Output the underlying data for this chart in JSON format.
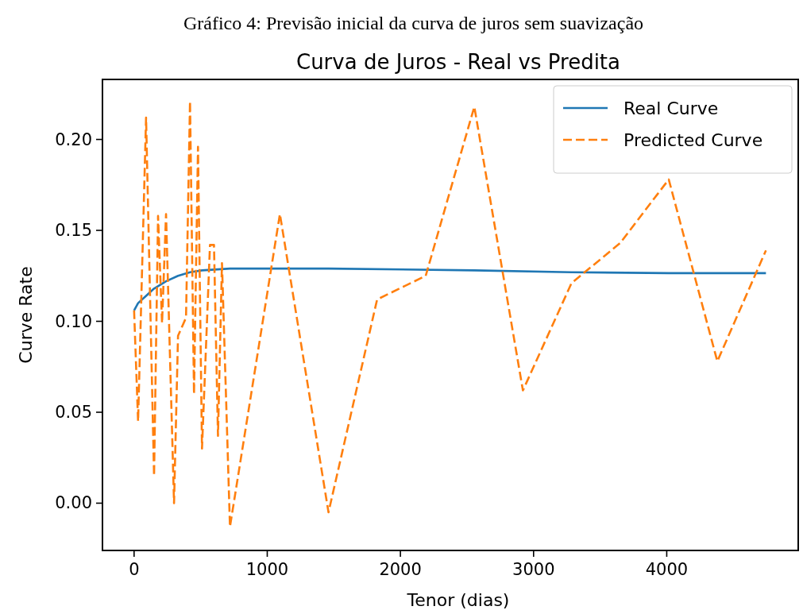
{
  "chart_data": {
    "type": "line",
    "title": "Curva de Juros - Real vs Predita",
    "annotations": [
      "Gráfico 4: Previsão inicial da curva de juros sem suavização"
    ],
    "xlabel": "Tenor (dias)",
    "ylabel": "Curve Rate",
    "xlim": [
      -237.5,
      4987.5
    ],
    "xticks": [
      0,
      1000,
      2000,
      3000,
      4000
    ],
    "ylim": [
      -0.026,
      0.233
    ],
    "yticks": [
      {
        "value": 0,
        "label": "0.00"
      },
      {
        "value": 0.05,
        "label": "0.05"
      },
      {
        "value": 0.1,
        "label": "0.10"
      },
      {
        "value": 0.15,
        "label": "0.15"
      },
      {
        "value": 0.2,
        "label": "0.20"
      }
    ],
    "grid": false,
    "legend": "top right",
    "series": [
      {
        "name": "Real Curve",
        "color": "#1f77b4",
        "line_style": "solid",
        "x": [
          0,
          30,
          90,
          150,
          240,
          330,
          420,
          510,
          720,
          1460,
          2555,
          3285,
          4015,
          4745
        ],
        "values": [
          0.106,
          0.11,
          0.114,
          0.118,
          0.122,
          0.125,
          0.127,
          0.128,
          0.129,
          0.129,
          0.128,
          0.127,
          0.1265,
          0.1265
        ]
      },
      {
        "name": "Predicted Curve",
        "color": "#ff7f0e",
        "line_style": "dashed",
        "x": [
          0,
          30,
          90,
          150,
          180,
          210,
          240,
          300,
          330,
          390,
          420,
          450,
          480,
          510,
          570,
          600,
          630,
          660,
          720,
          1095,
          1460,
          1825,
          2190,
          2555,
          2920,
          3285,
          3650,
          4015,
          4380,
          4745
        ],
        "values": [
          0.106,
          0.045,
          0.212,
          0.015,
          0.158,
          0.099,
          0.159,
          0.0,
          0.092,
          0.102,
          0.221,
          0.06,
          0.196,
          0.03,
          0.142,
          0.142,
          0.037,
          0.132,
          -0.013,
          0.159,
          -0.005,
          0.112,
          0.125,
          0.218,
          0.062,
          0.121,
          0.143,
          0.178,
          0.078,
          0.139
        ]
      }
    ]
  }
}
